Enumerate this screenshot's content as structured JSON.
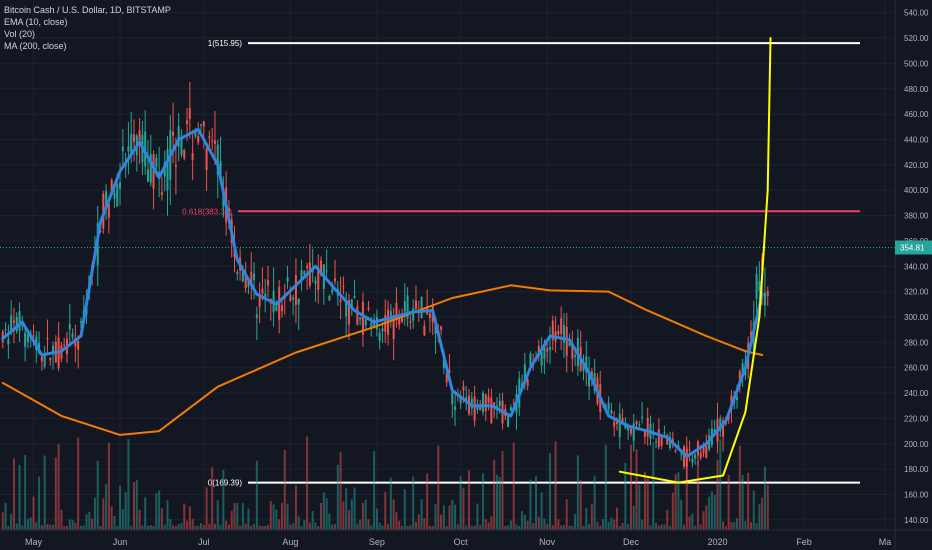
{
  "header": {
    "symbol": "Bitcoin Cash / U.S. Dollar, 1D, BITSTAMP",
    "indicators": [
      "EMA (10, close)",
      "Vol (20)",
      "MA (200, close)"
    ]
  },
  "chart_data": {
    "type": "candlestick",
    "symbol": "Bitcoin Cash / U.S. Dollar",
    "interval": "1D",
    "exchange": "BITSTAMP",
    "x_ticks": [
      "May",
      "Jun",
      "Jul",
      "Aug",
      "Sep",
      "Oct",
      "Nov",
      "Dec",
      "2020",
      "Feb",
      "Ma"
    ],
    "y_ticks": [
      140,
      160,
      180,
      200,
      220,
      240,
      260,
      280,
      300,
      320,
      340,
      360,
      380,
      400,
      420,
      440,
      460,
      480,
      500,
      520,
      540
    ],
    "ylim": [
      132,
      550
    ],
    "last_price": "354.81",
    "horizontal_levels": [
      {
        "label": "1(515.95)",
        "value": 515.95,
        "color": "#ffffff"
      },
      {
        "label": "0.618(383.36)",
        "value": 383.36,
        "color": "#f23f6c"
      },
      {
        "label": "0(169.39)",
        "value": 169.39,
        "color": "#ffffff"
      }
    ],
    "ema10": [
      [
        "2019-04-20",
        283
      ],
      [
        "2019-04-27",
        296
      ],
      [
        "2019-05-04",
        270
      ],
      [
        "2019-05-11",
        273
      ],
      [
        "2019-05-18",
        285
      ],
      [
        "2019-05-25",
        375
      ],
      [
        "2019-06-01",
        415
      ],
      [
        "2019-06-08",
        438
      ],
      [
        "2019-06-15",
        410
      ],
      [
        "2019-06-22",
        440
      ],
      [
        "2019-06-29",
        448
      ],
      [
        "2019-07-06",
        420
      ],
      [
        "2019-07-13",
        345
      ],
      [
        "2019-07-20",
        318
      ],
      [
        "2019-07-27",
        310
      ],
      [
        "2019-08-03",
        325
      ],
      [
        "2019-08-10",
        340
      ],
      [
        "2019-08-17",
        322
      ],
      [
        "2019-08-24",
        305
      ],
      [
        "2019-08-31",
        296
      ],
      [
        "2019-09-07",
        300
      ],
      [
        "2019-09-14",
        304
      ],
      [
        "2019-09-21",
        305
      ],
      [
        "2019-09-28",
        242
      ],
      [
        "2019-10-05",
        230
      ],
      [
        "2019-10-12",
        230
      ],
      [
        "2019-10-19",
        222
      ],
      [
        "2019-10-26",
        260
      ],
      [
        "2019-11-02",
        285
      ],
      [
        "2019-11-09",
        282
      ],
      [
        "2019-11-16",
        256
      ],
      [
        "2019-11-23",
        222
      ],
      [
        "2019-11-30",
        214
      ],
      [
        "2019-12-07",
        210
      ],
      [
        "2019-12-14",
        205
      ],
      [
        "2019-12-21",
        190
      ],
      [
        "2019-12-28",
        200
      ],
      [
        "2020-01-04",
        218
      ],
      [
        "2020-01-11",
        260
      ],
      [
        "2020-01-17",
        318
      ]
    ],
    "ma200": [
      [
        "2019-04-20",
        248
      ],
      [
        "2019-05-11",
        222
      ],
      [
        "2019-06-01",
        207
      ],
      [
        "2019-06-15",
        210
      ],
      [
        "2019-07-06",
        245
      ],
      [
        "2019-08-03",
        272
      ],
      [
        "2019-08-31",
        292
      ],
      [
        "2019-09-28",
        315
      ],
      [
        "2019-10-19",
        325
      ],
      [
        "2019-11-02",
        321
      ],
      [
        "2019-11-23",
        320
      ],
      [
        "2019-12-07",
        305
      ],
      [
        "2019-12-28",
        285
      ],
      [
        "2020-01-11",
        273
      ],
      [
        "2020-01-17",
        270
      ]
    ],
    "annotation_curve": [
      [
        "2019-11-27",
        178
      ],
      [
        "2019-12-18",
        169.39
      ],
      [
        "2020-01-03",
        175
      ],
      [
        "2020-01-11",
        225
      ],
      [
        "2020-01-16",
        300
      ],
      [
        "2020-01-19",
        400
      ],
      [
        "2020-01-20",
        520
      ]
    ]
  }
}
